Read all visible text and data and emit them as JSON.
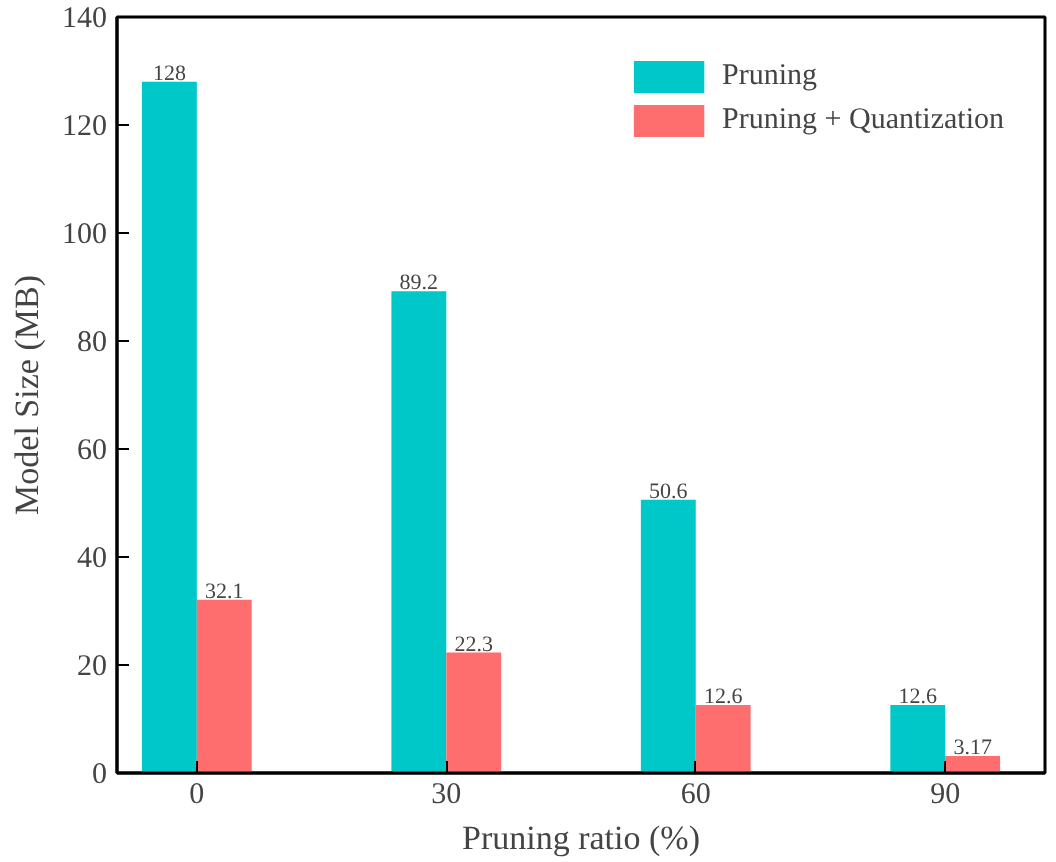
{
  "chart_data": {
    "type": "bar",
    "xlabel": "Pruning ratio (%)",
    "ylabel": "Model Size (MB)",
    "categories": [
      "0",
      "30",
      "60",
      "90"
    ],
    "series": [
      {
        "name": "Pruning",
        "color": "#00c8c8",
        "values": [
          128,
          89.2,
          50.6,
          12.6
        ]
      },
      {
        "name": "Pruning + Quantization",
        "color": "#ff6e6e",
        "values": [
          32.1,
          22.3,
          12.6,
          3.17
        ]
      }
    ],
    "ylim": [
      0,
      140
    ],
    "yticks": [
      0,
      20,
      40,
      60,
      80,
      100,
      120,
      140
    ],
    "data_labels": true,
    "grid": false,
    "legend": "top right"
  }
}
